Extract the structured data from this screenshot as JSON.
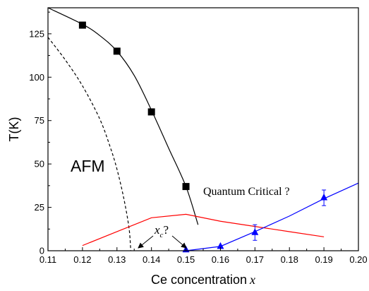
{
  "chart_data": {
    "type": "line",
    "xlabel": "Ce concentration",
    "xlabel_var": "x",
    "ylabel": "T(K)",
    "xlim": [
      0.11,
      0.2
    ],
    "ylim": [
      0,
      140
    ],
    "x_ticks": [
      0.11,
      0.12,
      0.13,
      0.14,
      0.15,
      0.16,
      0.17,
      0.18,
      0.19,
      0.2
    ],
    "x_tick_labels": [
      "0.11",
      "0.12",
      "0.13",
      "0.14",
      "0.15",
      "0.16",
      "0.17",
      "0.18",
      "0.19",
      "0.20"
    ],
    "y_ticks": [
      0,
      25,
      50,
      75,
      100,
      125
    ],
    "y_tick_labels": [
      "0",
      "25",
      "50",
      "75",
      "100",
      "125"
    ],
    "grid": false,
    "series": [
      {
        "kind": "square-markers",
        "color": "#000000",
        "points": [
          [
            0.12,
            130
          ],
          [
            0.13,
            115
          ],
          [
            0.14,
            80
          ],
          [
            0.15,
            37
          ]
        ]
      },
      {
        "kind": "solid-curve",
        "color": "#000000",
        "points": [
          [
            0.11,
            140
          ],
          [
            0.12,
            130.5
          ],
          [
            0.125,
            124
          ],
          [
            0.13,
            115
          ],
          [
            0.135,
            101
          ],
          [
            0.14,
            81
          ],
          [
            0.145,
            59
          ],
          [
            0.15,
            37
          ],
          [
            0.1535,
            15
          ]
        ]
      },
      {
        "kind": "dashed-curve",
        "color": "#000000",
        "points": [
          [
            0.11,
            123
          ],
          [
            0.115,
            110
          ],
          [
            0.12,
            95
          ],
          [
            0.125,
            76
          ],
          [
            0.128,
            60
          ],
          [
            0.13,
            47
          ],
          [
            0.132,
            30
          ],
          [
            0.1335,
            13
          ],
          [
            0.134,
            0
          ]
        ]
      },
      {
        "kind": "red-line",
        "color": "#ff0000",
        "points": [
          [
            0.12,
            3
          ],
          [
            0.13,
            11
          ],
          [
            0.14,
            19
          ],
          [
            0.15,
            21
          ],
          [
            0.16,
            17
          ],
          [
            0.17,
            14
          ],
          [
            0.18,
            11
          ],
          [
            0.19,
            8
          ]
        ]
      },
      {
        "kind": "blue-line",
        "color": "#0000ff",
        "points": [
          [
            0.15,
            0
          ],
          [
            0.16,
            2.5
          ],
          [
            0.17,
            11
          ],
          [
            0.18,
            20
          ],
          [
            0.19,
            30
          ],
          [
            0.2,
            39
          ]
        ]
      },
      {
        "kind": "triangle-markers",
        "color": "#0000ff",
        "points": [
          [
            0.15,
            0.5
          ],
          [
            0.16,
            2.5
          ],
          [
            0.17,
            10.5
          ],
          [
            0.19,
            30.5
          ]
        ],
        "error_bars": [
          [
            0.17,
            6,
            15
          ],
          [
            0.19,
            26,
            35
          ]
        ]
      }
    ],
    "annotations": {
      "afm": "AFM",
      "quantum_critical": "Quantum Critical ?",
      "xc_main": "x",
      "xc_sub": "c",
      "xc_q": "?"
    }
  }
}
